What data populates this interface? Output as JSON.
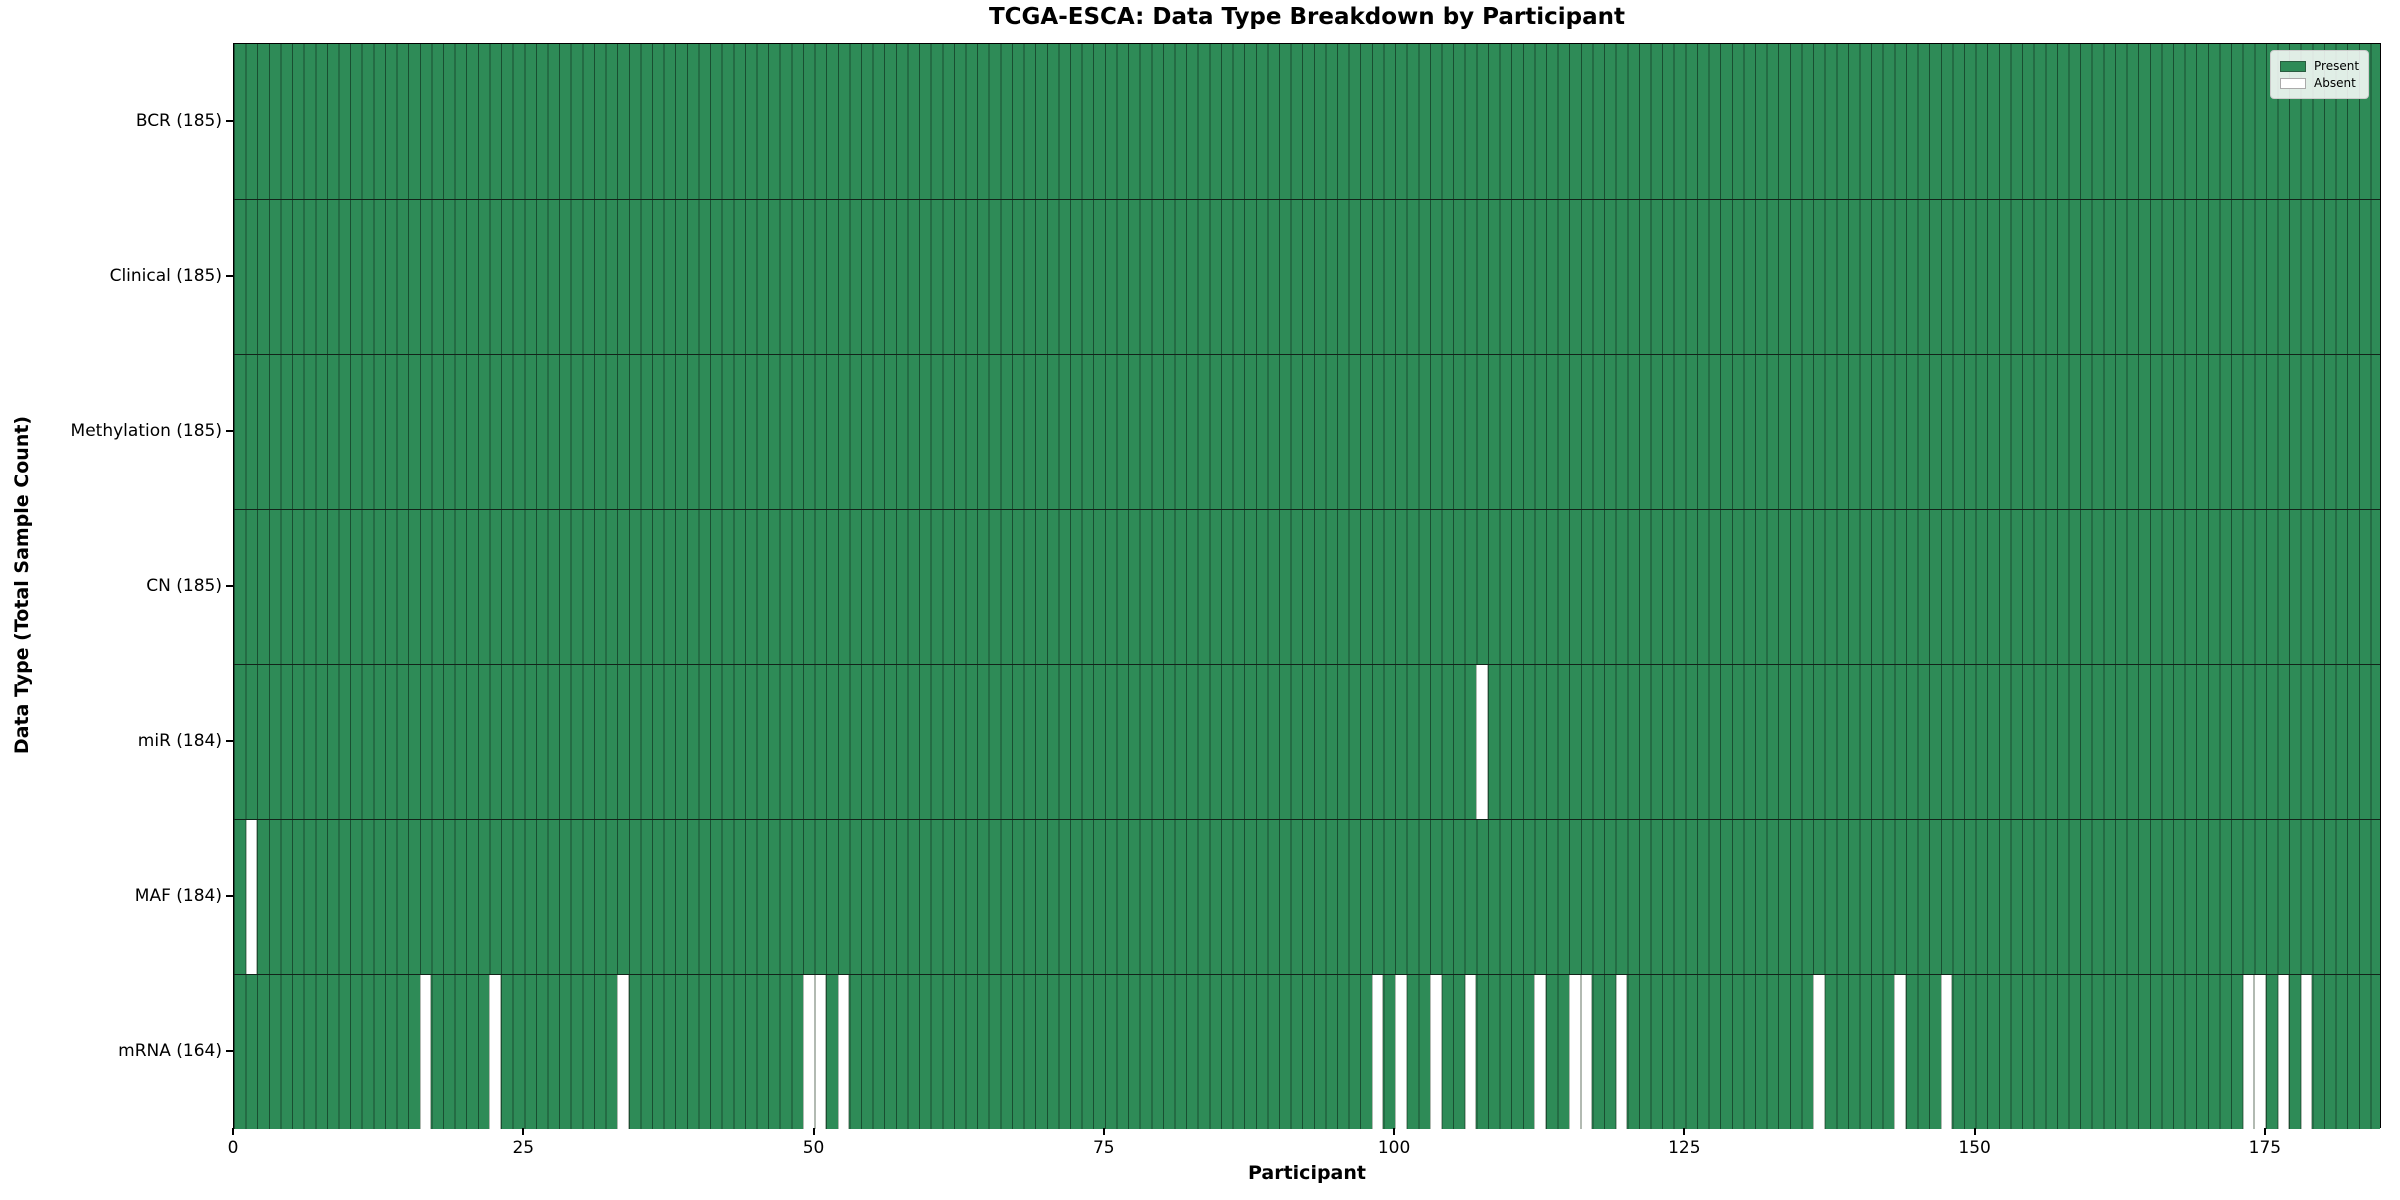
{
  "chart_data": {
    "type": "heatmap",
    "title": "TCGA-ESCA: Data Type Breakdown by Participant",
    "xlabel": "Participant",
    "ylabel": "Data Type (Total Sample Count)",
    "n_participants": 185,
    "x_ticks": [
      0,
      25,
      50,
      75,
      100,
      125,
      150,
      175
    ],
    "legend": [
      {
        "label": "Present",
        "color": "#2e8b57",
        "edge": "#2a5c40"
      },
      {
        "label": "Absent",
        "color": "#ffffff",
        "edge": "#aaaaaa"
      }
    ],
    "colors": {
      "present": "#2e8b57",
      "absent": "#ffffff"
    },
    "rows": [
      {
        "label": "BCR (185)",
        "data_type": "BCR",
        "count": 185,
        "absent": []
      },
      {
        "label": "Clinical (185)",
        "data_type": "Clinical",
        "count": 185,
        "absent": []
      },
      {
        "label": "Methylation (185)",
        "data_type": "Methylation",
        "count": 185,
        "absent": []
      },
      {
        "label": "CN (185)",
        "data_type": "CN",
        "count": 185,
        "absent": []
      },
      {
        "label": "miR (184)",
        "data_type": "miR",
        "count": 184,
        "absent": [
          107
        ]
      },
      {
        "label": "MAF (184)",
        "data_type": "MAF",
        "count": 184,
        "absent": [
          1
        ]
      },
      {
        "label": "mRNA (164)",
        "data_type": "mRNA",
        "count": 164,
        "absent": [
          16,
          22,
          33,
          49,
          50,
          52,
          98,
          100,
          103,
          106,
          112,
          115,
          116,
          119,
          136,
          143,
          147,
          173,
          174,
          176,
          178
        ]
      }
    ]
  }
}
